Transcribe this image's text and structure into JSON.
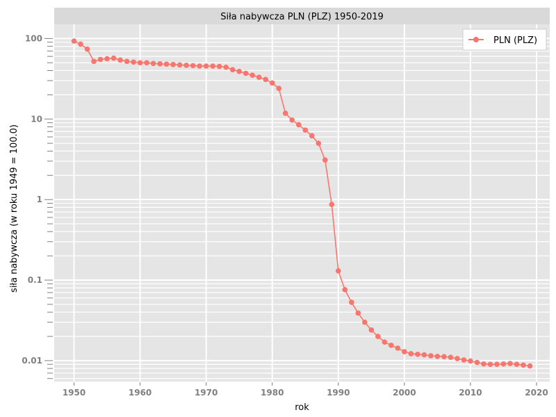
{
  "chart_data": {
    "type": "line",
    "title": "Siła nabywcza PLN (PLZ) 1950-2019",
    "xlabel": "rok",
    "ylabel": "siła nabywcza (w roku 1949 = 100.0)",
    "yscale": "log",
    "xlim": [
      1947,
      2022
    ],
    "ylim": [
      0.0055,
      150
    ],
    "xticks": [
      "1950",
      "1960",
      "1970",
      "1980",
      "1990",
      "2000",
      "2010",
      "2020"
    ],
    "yticks": [
      "0.01",
      "0.1",
      "1",
      "10",
      "100"
    ],
    "grid": true,
    "legend_position": "top-right",
    "colors": {
      "series": "#f8766d",
      "panel": "#e5e5e5",
      "strip": "#d9d9d9",
      "grid": "#ffffff"
    },
    "series": [
      {
        "name": "PLN (PLZ)",
        "x": [
          1950,
          1951,
          1952,
          1953,
          1954,
          1955,
          1956,
          1957,
          1958,
          1959,
          1960,
          1961,
          1962,
          1963,
          1964,
          1965,
          1966,
          1967,
          1968,
          1969,
          1970,
          1971,
          1972,
          1973,
          1974,
          1975,
          1976,
          1977,
          1978,
          1979,
          1980,
          1981,
          1982,
          1983,
          1984,
          1985,
          1986,
          1987,
          1988,
          1989,
          1990,
          1991,
          1992,
          1993,
          1994,
          1995,
          1996,
          1997,
          1998,
          1999,
          2000,
          2001,
          2002,
          2003,
          2004,
          2005,
          2006,
          2007,
          2008,
          2009,
          2010,
          2011,
          2012,
          2013,
          2014,
          2015,
          2016,
          2017,
          2018,
          2019
        ],
        "y": [
          93,
          85,
          74,
          52,
          55,
          56,
          57,
          54,
          52,
          51,
          50,
          50,
          49,
          48.5,
          48,
          47.5,
          47,
          46.5,
          46,
          45.5,
          45.5,
          45.5,
          45,
          44,
          41,
          39,
          37,
          35,
          33,
          31,
          28,
          24,
          11.8,
          9.7,
          8.5,
          7.3,
          6.2,
          5.0,
          3.1,
          0.87,
          0.13,
          0.076,
          0.053,
          0.039,
          0.03,
          0.024,
          0.02,
          0.017,
          0.0155,
          0.0143,
          0.0129,
          0.0122,
          0.012,
          0.0118,
          0.0115,
          0.0113,
          0.0112,
          0.011,
          0.0106,
          0.0102,
          0.0099,
          0.0095,
          0.0091,
          0.009,
          0.009,
          0.0091,
          0.0092,
          0.009,
          0.0088,
          0.0086
        ]
      }
    ]
  }
}
